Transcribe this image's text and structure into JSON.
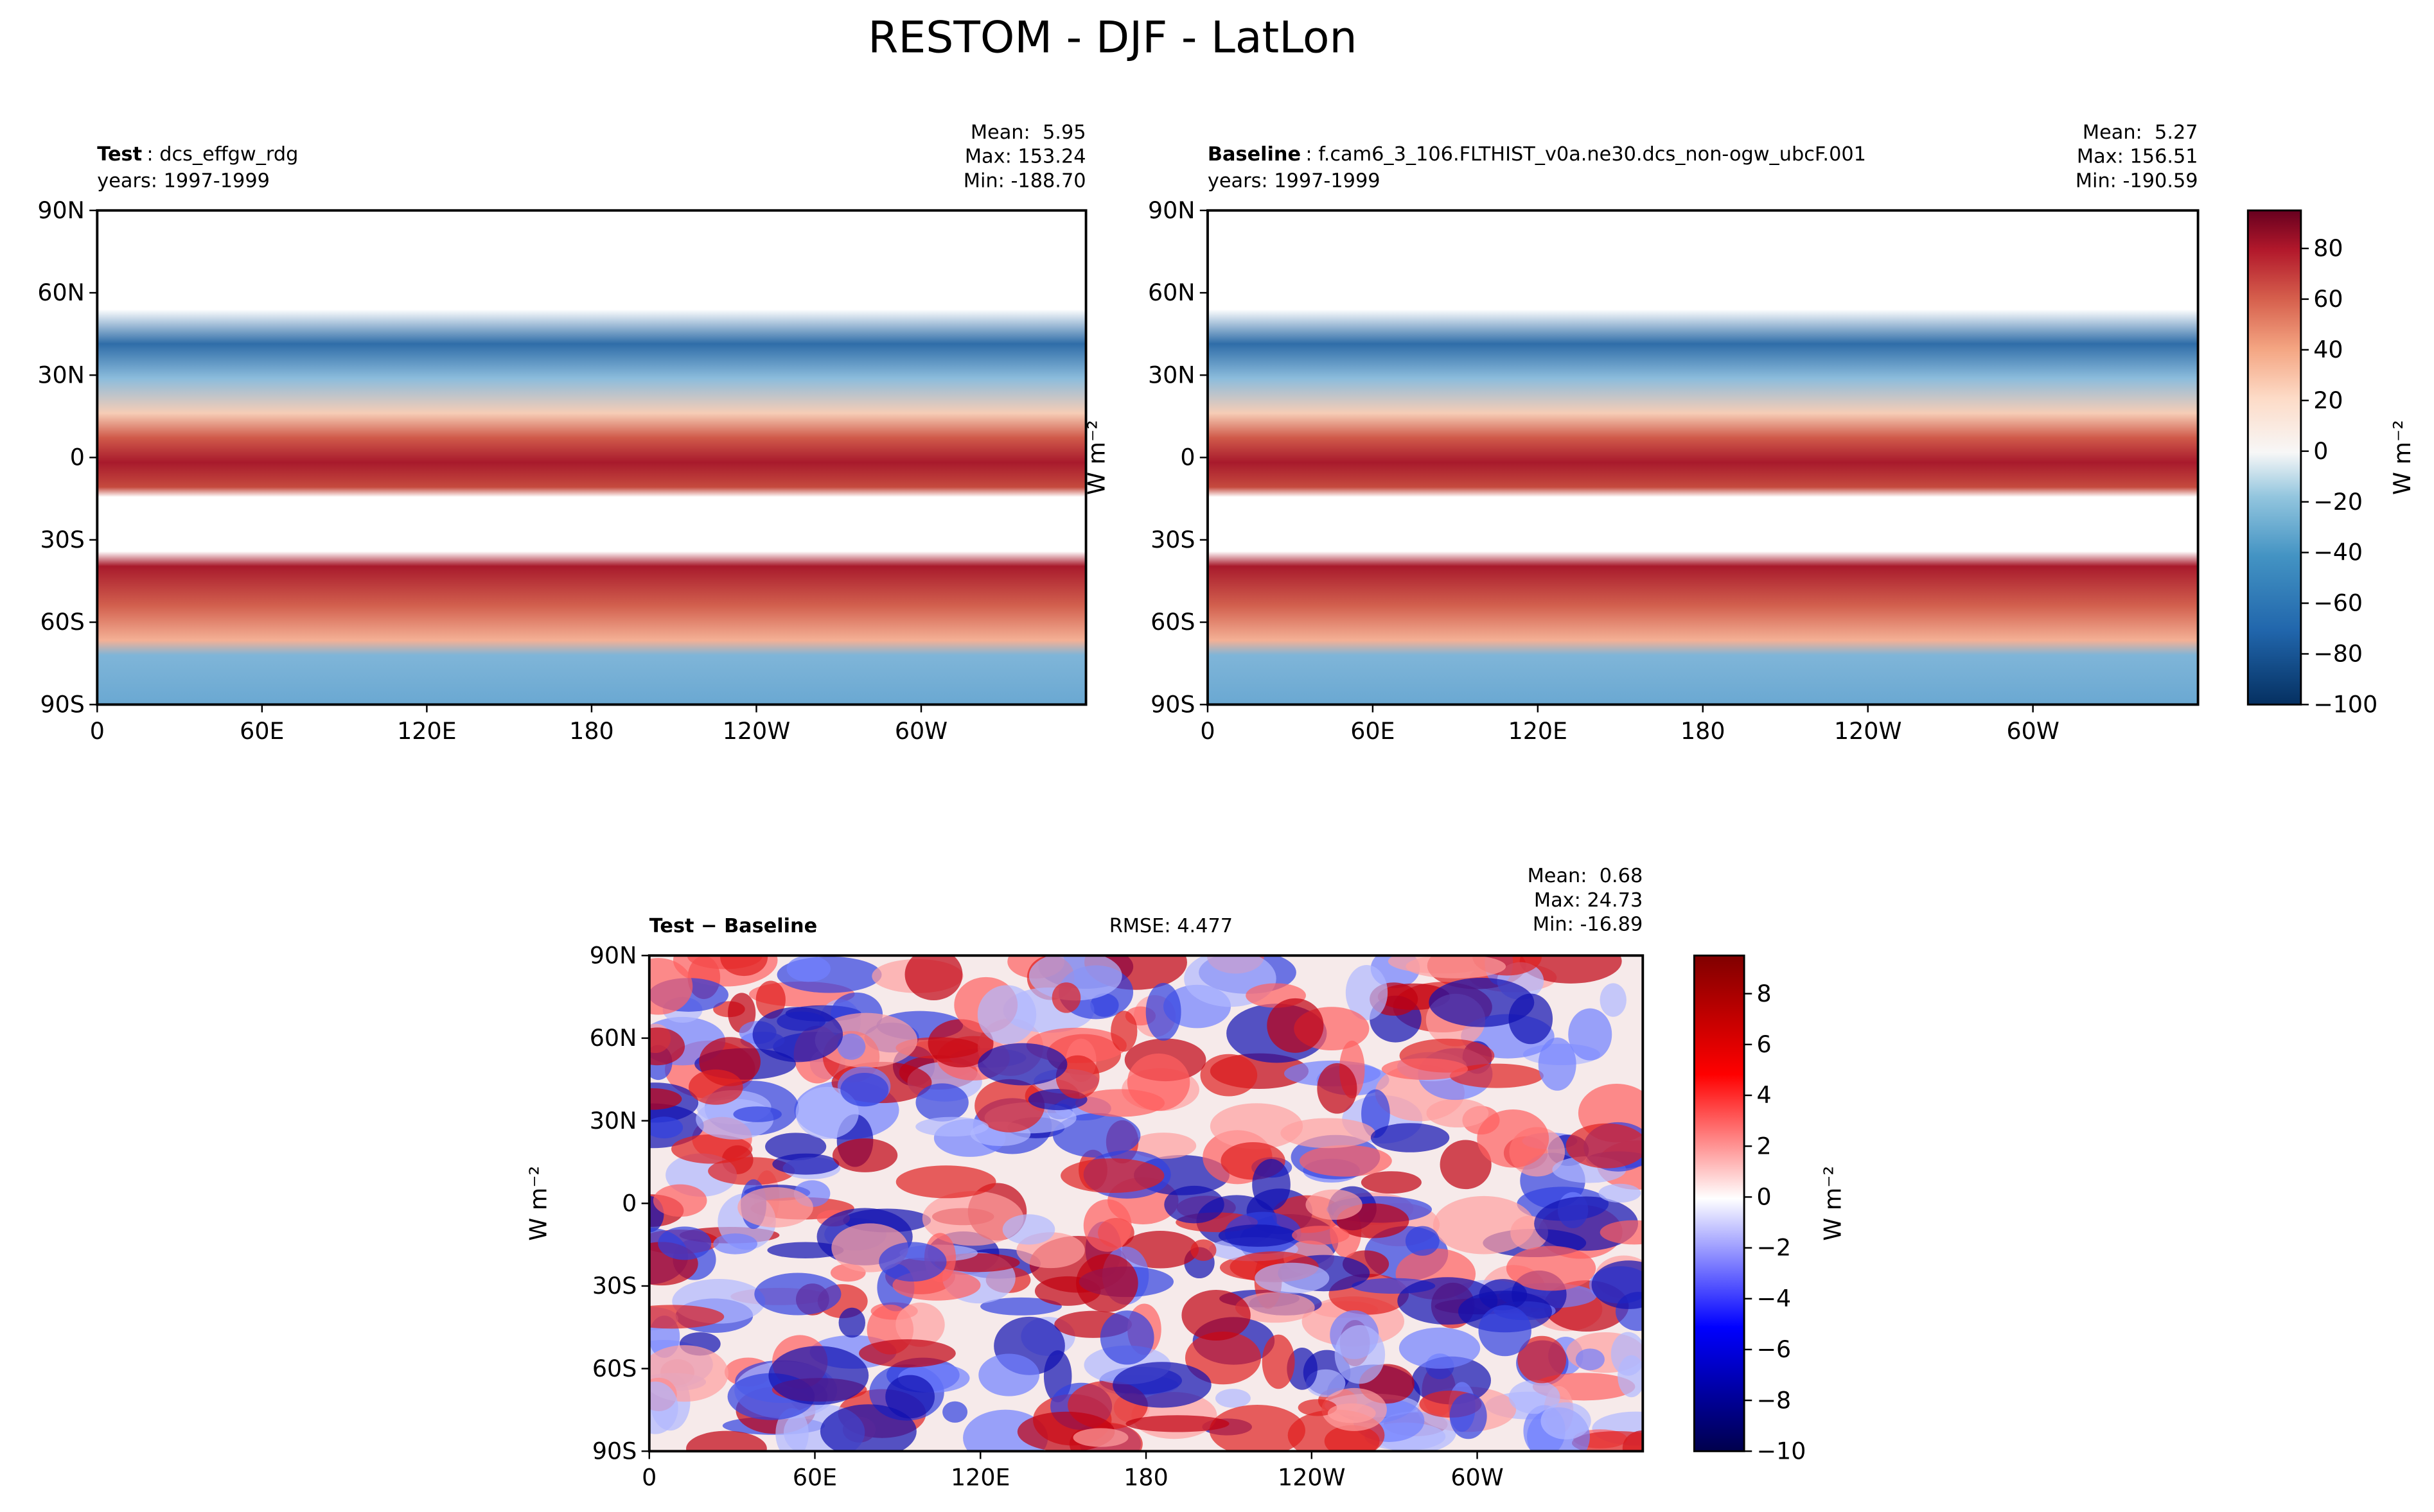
{
  "title": "RESTOM - DJF - LatLon",
  "chart_data": [
    {
      "type": "contour-map",
      "case_label": "Test",
      "case_name": ": dcs_effgw_rdg",
      "years": "years: 1997-1999",
      "stats": [
        "Mean:  5.95",
        "Max: 153.24",
        "Min: -188.70"
      ],
      "xlim": [
        0,
        360
      ],
      "xticks": [
        0,
        {
          "value": 60,
          "label": "60E"
        },
        {
          "value": 120,
          "label": "120E"
        },
        180,
        {
          "value": 240,
          "label": "120W"
        },
        {
          "value": 300,
          "label": "60W"
        }
      ],
      "ylim": [
        -90,
        90
      ],
      "yticks": [
        {
          "value": -90,
          "label": "90S"
        },
        {
          "value": -60,
          "label": "60S"
        },
        {
          "value": -30,
          "label": "30S"
        },
        0,
        {
          "value": 30,
          "label": "30N"
        },
        {
          "value": 60,
          "label": "60N"
        },
        {
          "value": 90,
          "label": "90N"
        }
      ]
    },
    {
      "type": "contour-map",
      "case_label": "Baseline",
      "case_name": ": f.cam6_3_106.FLTHIST_v0a.ne30.dcs_non-ogw_ubcF.001",
      "years": "years: 1997-1999",
      "stats": [
        "Mean:  5.27",
        "Max: 156.51",
        "Min: -190.59"
      ],
      "xlim": [
        0,
        360
      ],
      "xticks": [
        0,
        {
          "value": 60,
          "label": "60E"
        },
        {
          "value": 120,
          "label": "120E"
        },
        180,
        {
          "value": 240,
          "label": "120W"
        },
        {
          "value": 300,
          "label": "60W"
        }
      ],
      "ylim": [
        -90,
        90
      ],
      "yticks": [
        {
          "value": -90,
          "label": "90S"
        },
        {
          "value": -60,
          "label": "60S"
        },
        {
          "value": -30,
          "label": "30S"
        },
        0,
        {
          "value": 30,
          "label": "30N"
        },
        {
          "value": 60,
          "label": "60N"
        },
        {
          "value": 90,
          "label": "90N"
        }
      ],
      "ylabel": "W m⁻²",
      "colorbar": {
        "lim": [
          -100,
          95
        ],
        "label": "W m⁻²",
        "colormap": "RdBu_r",
        "ticks": [
          {
            "value": -100,
            "label": "−100"
          },
          {
            "value": -80,
            "label": "−80"
          },
          {
            "value": -60,
            "label": "−60"
          },
          {
            "value": -40,
            "label": "−40"
          },
          {
            "value": -20,
            "label": "−20"
          },
          0,
          20,
          40,
          60,
          80
        ]
      }
    },
    {
      "type": "contour-map",
      "case_label": "Test − Baseline",
      "rmse": "RMSE: 4.477",
      "stats": [
        "Mean:  0.68",
        "Max: 24.73",
        "Min: -16.89"
      ],
      "xlim": [
        0,
        360
      ],
      "xticks": [
        0,
        {
          "value": 60,
          "label": "60E"
        },
        {
          "value": 120,
          "label": "120E"
        },
        180,
        {
          "value": 240,
          "label": "120W"
        },
        {
          "value": 300,
          "label": "60W"
        }
      ],
      "ylim": [
        -90,
        90
      ],
      "yticks": [
        {
          "value": -90,
          "label": "90S"
        },
        {
          "value": -60,
          "label": "60S"
        },
        {
          "value": -30,
          "label": "30S"
        },
        0,
        {
          "value": 30,
          "label": "30N"
        },
        {
          "value": 60,
          "label": "60N"
        },
        {
          "value": 90,
          "label": "90N"
        }
      ],
      "ylabel": "W m⁻²",
      "colorbar": {
        "lim": [
          -10,
          9.5
        ],
        "label": "W m⁻²",
        "colormap": "seismic",
        "ticks": [
          {
            "value": -10,
            "label": "−10"
          },
          {
            "value": -8,
            "label": "−8"
          },
          {
            "value": -6,
            "label": "−6"
          },
          {
            "value": -4,
            "label": "−4"
          },
          {
            "value": -2,
            "label": "−2"
          },
          0,
          2,
          4,
          6,
          8
        ]
      }
    }
  ]
}
